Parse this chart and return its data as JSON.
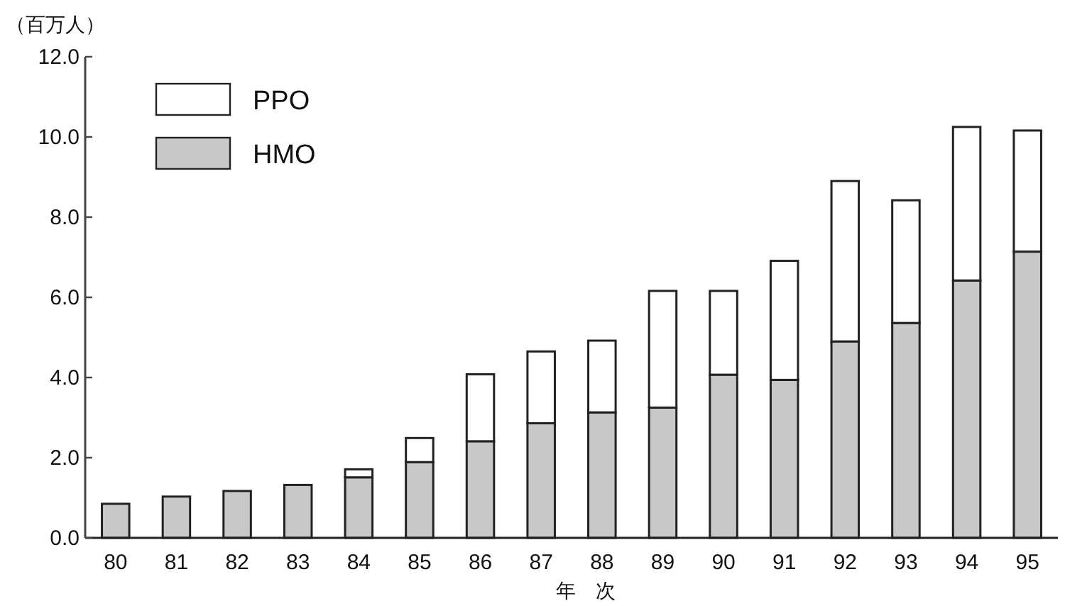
{
  "chart_data": {
    "type": "bar",
    "stacked": true,
    "ylabel": "（百万人）",
    "xlabel": "年　次",
    "categories": [
      "80",
      "81",
      "82",
      "83",
      "84",
      "85",
      "86",
      "87",
      "88",
      "89",
      "90",
      "91",
      "92",
      "93",
      "94",
      "95"
    ],
    "series": [
      {
        "name": "HMO",
        "color": "#c8c8c8",
        "values": [
          0.85,
          1.03,
          1.17,
          1.32,
          1.51,
          1.89,
          2.41,
          2.86,
          3.13,
          3.25,
          4.07,
          3.94,
          4.9,
          5.36,
          6.42,
          7.14
        ]
      },
      {
        "name": "PPO",
        "color": "#ffffff",
        "values": [
          null,
          null,
          null,
          null,
          0.2,
          0.6,
          1.67,
          1.79,
          1.79,
          2.91,
          2.09,
          2.97,
          4.0,
          3.06,
          3.83,
          3.02
        ]
      }
    ],
    "ylim": [
      0,
      12
    ],
    "yticks": [
      {
        "value": 0,
        "label": "0.0"
      },
      {
        "value": 2,
        "label": "2.0"
      },
      {
        "value": 4,
        "label": "4.0"
      },
      {
        "value": 6,
        "label": "6.0"
      },
      {
        "value": 8,
        "label": "8.0"
      },
      {
        "value": 10,
        "label": "10.0"
      },
      {
        "value": 12,
        "label": "12.0"
      }
    ],
    "grid": false,
    "legend": "top left"
  }
}
